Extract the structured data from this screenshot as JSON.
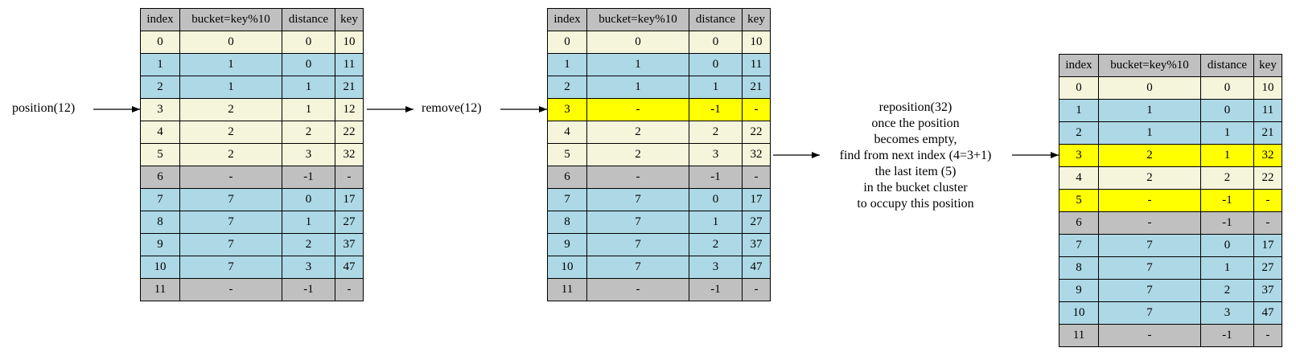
{
  "headers": [
    "index",
    "bucket=key%10",
    "distance",
    "key"
  ],
  "colors": {
    "header": "#c0c0c0",
    "beige": "#f5f5dc",
    "blue": "#add8e6",
    "gray": "#c0c0c0",
    "yellow": "#ffff00"
  },
  "labels": {
    "position": "position(12)",
    "remove": "remove(12)"
  },
  "note": [
    "reposition(32)",
    "once the position",
    "becomes empty,",
    "find from next index (4=3+1)",
    "the last item (5)",
    "in the bucket cluster",
    "to occupy this position"
  ],
  "tables": [
    {
      "rows": [
        {
          "cells": [
            "0",
            "0",
            "0",
            "10"
          ],
          "color": "beige"
        },
        {
          "cells": [
            "1",
            "1",
            "0",
            "11"
          ],
          "color": "blue"
        },
        {
          "cells": [
            "2",
            "1",
            "1",
            "21"
          ],
          "color": "blue"
        },
        {
          "cells": [
            "3",
            "2",
            "1",
            "12"
          ],
          "color": "beige"
        },
        {
          "cells": [
            "4",
            "2",
            "2",
            "22"
          ],
          "color": "beige"
        },
        {
          "cells": [
            "5",
            "2",
            "3",
            "32"
          ],
          "color": "beige"
        },
        {
          "cells": [
            "6",
            "-",
            "-1",
            "-"
          ],
          "color": "gray"
        },
        {
          "cells": [
            "7",
            "7",
            "0",
            "17"
          ],
          "color": "blue"
        },
        {
          "cells": [
            "8",
            "7",
            "1",
            "27"
          ],
          "color": "blue"
        },
        {
          "cells": [
            "9",
            "7",
            "2",
            "37"
          ],
          "color": "blue"
        },
        {
          "cells": [
            "10",
            "7",
            "3",
            "47"
          ],
          "color": "blue"
        },
        {
          "cells": [
            "11",
            "-",
            "-1",
            "-"
          ],
          "color": "gray"
        }
      ]
    },
    {
      "rows": [
        {
          "cells": [
            "0",
            "0",
            "0",
            "10"
          ],
          "color": "beige"
        },
        {
          "cells": [
            "1",
            "1",
            "0",
            "11"
          ],
          "color": "blue"
        },
        {
          "cells": [
            "2",
            "1",
            "1",
            "21"
          ],
          "color": "blue"
        },
        {
          "cells": [
            "3",
            "-",
            "-1",
            "-"
          ],
          "color": "yellow"
        },
        {
          "cells": [
            "4",
            "2",
            "2",
            "22"
          ],
          "color": "beige"
        },
        {
          "cells": [
            "5",
            "2",
            "3",
            "32"
          ],
          "color": "beige"
        },
        {
          "cells": [
            "6",
            "-",
            "-1",
            "-"
          ],
          "color": "gray"
        },
        {
          "cells": [
            "7",
            "7",
            "0",
            "17"
          ],
          "color": "blue"
        },
        {
          "cells": [
            "8",
            "7",
            "1",
            "27"
          ],
          "color": "blue"
        },
        {
          "cells": [
            "9",
            "7",
            "2",
            "37"
          ],
          "color": "blue"
        },
        {
          "cells": [
            "10",
            "7",
            "3",
            "47"
          ],
          "color": "blue"
        },
        {
          "cells": [
            "11",
            "-",
            "-1",
            "-"
          ],
          "color": "gray"
        }
      ]
    },
    {
      "rows": [
        {
          "cells": [
            "0",
            "0",
            "0",
            "10"
          ],
          "color": "beige"
        },
        {
          "cells": [
            "1",
            "1",
            "0",
            "11"
          ],
          "color": "blue"
        },
        {
          "cells": [
            "2",
            "1",
            "1",
            "21"
          ],
          "color": "blue"
        },
        {
          "cells": [
            "3",
            "2",
            "1",
            "32"
          ],
          "color": "yellow"
        },
        {
          "cells": [
            "4",
            "2",
            "2",
            "22"
          ],
          "color": "beige"
        },
        {
          "cells": [
            "5",
            "-",
            "-1",
            "-"
          ],
          "color": "yellow"
        },
        {
          "cells": [
            "6",
            "-",
            "-1",
            "-"
          ],
          "color": "gray"
        },
        {
          "cells": [
            "7",
            "7",
            "0",
            "17"
          ],
          "color": "blue"
        },
        {
          "cells": [
            "8",
            "7",
            "1",
            "27"
          ],
          "color": "blue"
        },
        {
          "cells": [
            "9",
            "7",
            "2",
            "37"
          ],
          "color": "blue"
        },
        {
          "cells": [
            "10",
            "7",
            "3",
            "47"
          ],
          "color": "blue"
        },
        {
          "cells": [
            "11",
            "-",
            "-1",
            "-"
          ],
          "color": "gray"
        }
      ]
    }
  ]
}
